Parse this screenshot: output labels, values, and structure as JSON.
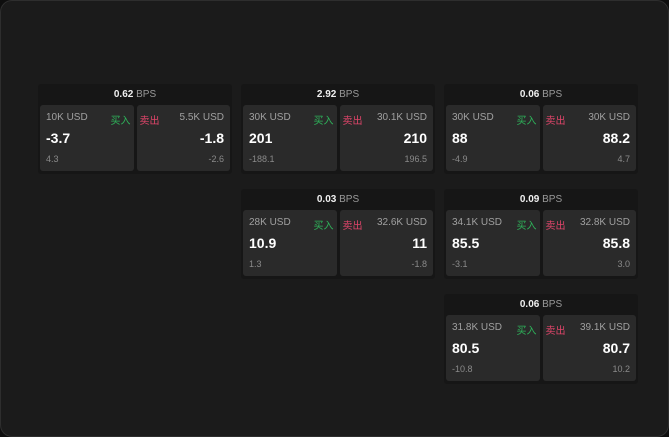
{
  "unit": "BPS",
  "buy_label": "买入",
  "sell_label": "卖出",
  "colors": {
    "buy": "#2eb35a",
    "sell": "#e0456a"
  },
  "cards": [
    {
      "spread": "0.62",
      "bid": {
        "size": "10K USD",
        "price": "-3.7",
        "change": "4.3"
      },
      "ask": {
        "size": "5.5K USD",
        "price": "-1.8",
        "change": "-2.6"
      }
    },
    {
      "spread": "2.92",
      "bid": {
        "size": "30K USD",
        "price": "201",
        "change": "-188.1"
      },
      "ask": {
        "size": "30.1K USD",
        "price": "210",
        "change": "196.5"
      }
    },
    {
      "spread": "0.06",
      "bid": {
        "size": "30K USD",
        "price": "88",
        "change": "-4.9"
      },
      "ask": {
        "size": "30K USD",
        "price": "88.2",
        "change": "4.7"
      }
    },
    {
      "spread": "0.03",
      "bid": {
        "size": "28K USD",
        "price": "10.9",
        "change": "1.3"
      },
      "ask": {
        "size": "32.6K USD",
        "price": "11",
        "change": "-1.8"
      }
    },
    {
      "spread": "0.09",
      "bid": {
        "size": "34.1K USD",
        "price": "85.5",
        "change": "-3.1"
      },
      "ask": {
        "size": "32.8K USD",
        "price": "85.8",
        "change": "3.0"
      }
    },
    {
      "spread": "0.06",
      "bid": {
        "size": "31.8K USD",
        "price": "80.5",
        "change": "-10.8"
      },
      "ask": {
        "size": "39.1K USD",
        "price": "80.7",
        "change": "10.2"
      }
    }
  ]
}
